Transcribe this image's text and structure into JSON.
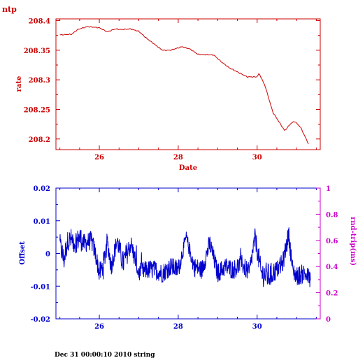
{
  "page_label": "ntp",
  "footer": "Dec 31 00:00:10 2010 string",
  "colors": {
    "red": "#cc0000",
    "blue": "#0000cc",
    "magenta": "#cc00cc"
  },
  "chart_data": [
    {
      "type": "line",
      "xlabel": "Date",
      "ylabel": "rate",
      "xlim": [
        24.9,
        31.6
      ],
      "ylim": [
        208.182,
        208.403
      ],
      "x_ticks": [
        26,
        28,
        30
      ],
      "y_ticks": [
        208.2,
        208.25,
        208.3,
        208.35,
        208.4
      ],
      "y_tick_labels": [
        "208.2",
        "208.25",
        "208.3",
        "208.35",
        "208.4"
      ],
      "series": [
        {
          "color": "#cc0000",
          "x": [
            25.0,
            25.3,
            25.45,
            25.7,
            26.0,
            26.2,
            26.4,
            26.55,
            26.8,
            27.0,
            27.2,
            27.4,
            27.6,
            27.8,
            28.1,
            28.3,
            28.5,
            28.9,
            29.1,
            29.3,
            29.6,
            29.75,
            30.0,
            30.05,
            30.2,
            30.4,
            30.7,
            30.85,
            30.95,
            31.1,
            31.3
          ],
          "y": [
            208.376,
            208.377,
            208.385,
            208.39,
            208.388,
            208.381,
            208.386,
            208.385,
            208.386,
            208.382,
            208.37,
            208.36,
            208.35,
            208.35,
            208.356,
            208.352,
            208.343,
            208.342,
            208.33,
            208.32,
            208.31,
            208.305,
            208.305,
            208.311,
            208.29,
            208.245,
            208.214,
            208.226,
            208.23,
            208.22,
            208.192
          ]
        }
      ]
    },
    {
      "type": "line",
      "xlabel": "",
      "ylabel": "Offset",
      "y2label": "rnd-trip(ms)",
      "xlim": [
        24.9,
        31.6
      ],
      "ylim": [
        -0.02,
        0.02
      ],
      "y2lim": [
        0,
        1
      ],
      "x_ticks": [
        26,
        28,
        30
      ],
      "y_ticks": [
        -0.02,
        -0.01,
        0,
        0.01,
        0.02
      ],
      "y_tick_labels": [
        "-0.02",
        "-0.01",
        "0",
        "0.01",
        "0.02"
      ],
      "y2_ticks": [
        0,
        0.2,
        0.4,
        0.6,
        0.8,
        1
      ],
      "y2_tick_labels": [
        "0",
        "0.2",
        "0.4",
        "0.6",
        "0.8",
        "1"
      ],
      "series": [
        {
          "color": "#0000cc",
          "x": [
            25.0,
            25.1,
            25.2,
            25.3,
            25.4,
            25.5,
            25.6,
            25.8,
            25.9,
            26.0,
            26.1,
            26.2,
            26.3,
            26.45,
            26.6,
            26.8,
            27.0,
            27.2,
            27.4,
            27.6,
            27.8,
            28.0,
            28.2,
            28.4,
            28.6,
            28.8,
            29.0,
            29.2,
            29.4,
            29.6,
            29.8,
            29.95,
            30.1,
            30.3,
            30.5,
            30.65,
            30.8,
            30.9,
            31.0,
            31.2,
            31.35
          ],
          "y": [
            0.003,
            -0.002,
            0.004,
            0.004,
            0.003,
            0.005,
            0.003,
            0.004,
            0.0,
            -0.006,
            -0.004,
            0.004,
            -0.004,
            0.004,
            -0.003,
            0.003,
            -0.006,
            -0.005,
            -0.005,
            -0.006,
            -0.004,
            -0.005,
            0.005,
            -0.004,
            -0.005,
            0.003,
            -0.006,
            -0.004,
            -0.005,
            -0.003,
            -0.006,
            0.005,
            -0.006,
            -0.007,
            -0.005,
            -0.003,
            0.006,
            -0.005,
            -0.007,
            -0.006,
            -0.008
          ],
          "noise": [
            0.003,
            0.004,
            0.003,
            0.004,
            0.003,
            0.004,
            0.003,
            0.003,
            0.003,
            0.003,
            0.004,
            0.003,
            0.003,
            0.003,
            0.004,
            0.003,
            0.003,
            0.003,
            0.003,
            0.003,
            0.003,
            0.003,
            0.002,
            0.003,
            0.003,
            0.003,
            0.003,
            0.003,
            0.003,
            0.003,
            0.003,
            0.003,
            0.004,
            0.004,
            0.003,
            0.003,
            0.003,
            0.003,
            0.003,
            0.003,
            0.003
          ]
        }
      ]
    }
  ]
}
